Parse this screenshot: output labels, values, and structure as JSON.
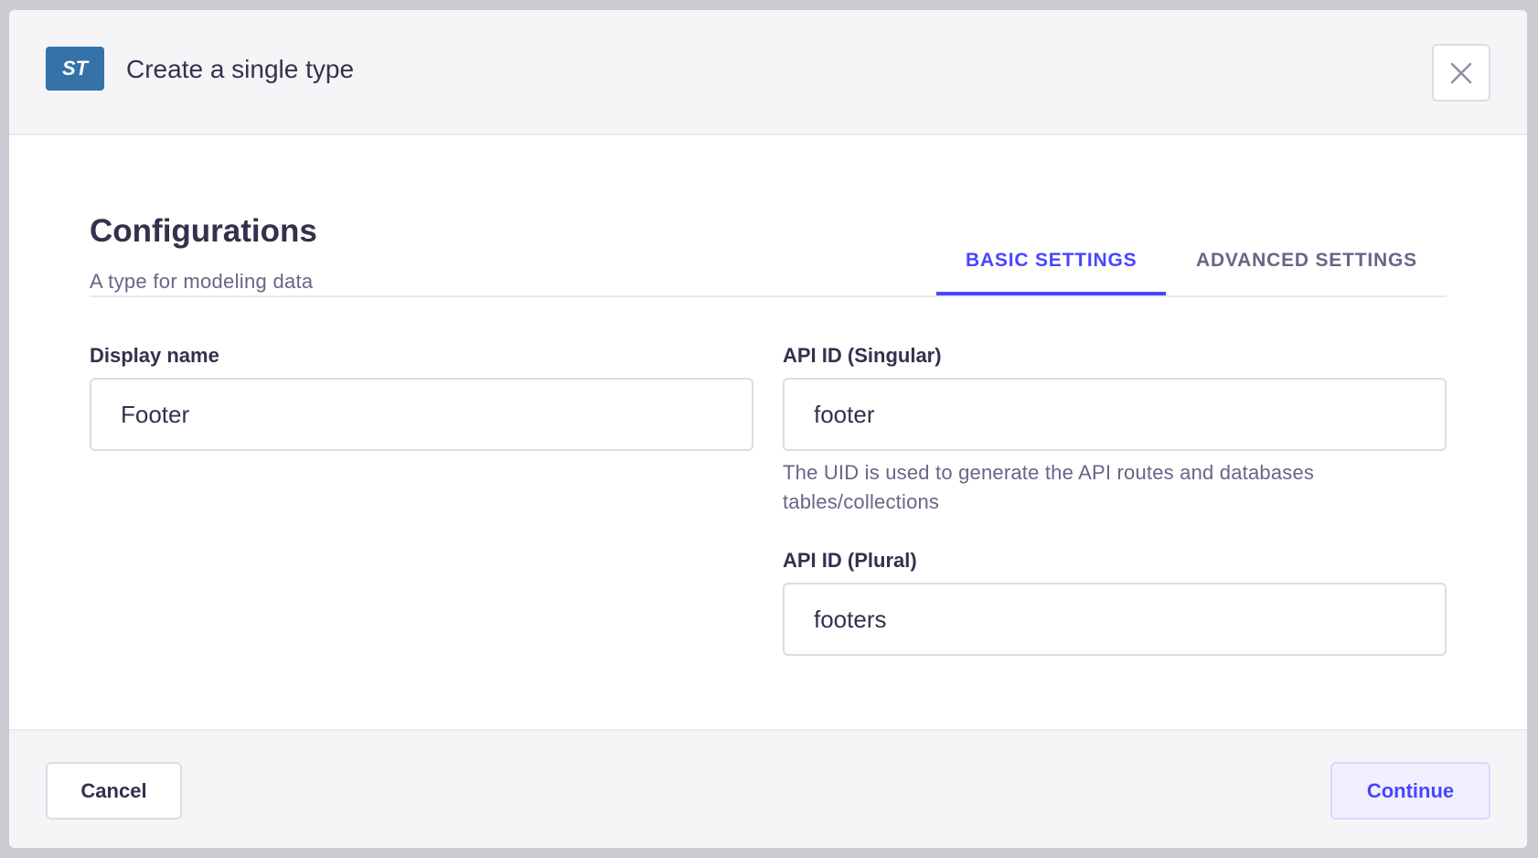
{
  "modal": {
    "badge": "ST",
    "title": "Create a single type",
    "close_icon": "close-icon"
  },
  "section": {
    "heading": "Configurations",
    "subtitle": "A type for modeling data"
  },
  "tabs": [
    {
      "label": "BASIC SETTINGS",
      "active": true
    },
    {
      "label": "ADVANCED SETTINGS",
      "active": false
    }
  ],
  "fields": {
    "display_name": {
      "label": "Display name",
      "value": "Footer"
    },
    "api_singular": {
      "label": "API ID (Singular)",
      "value": "footer",
      "help": "The UID is used to generate the API routes and databases tables/collections"
    },
    "api_plural": {
      "label": "API ID (Plural)",
      "value": "footers"
    }
  },
  "footer": {
    "cancel": "Cancel",
    "continue": "Continue"
  },
  "colors": {
    "accent": "#4945ff",
    "badge": "#3572a8",
    "text": "#32324d",
    "muted": "#666687"
  }
}
